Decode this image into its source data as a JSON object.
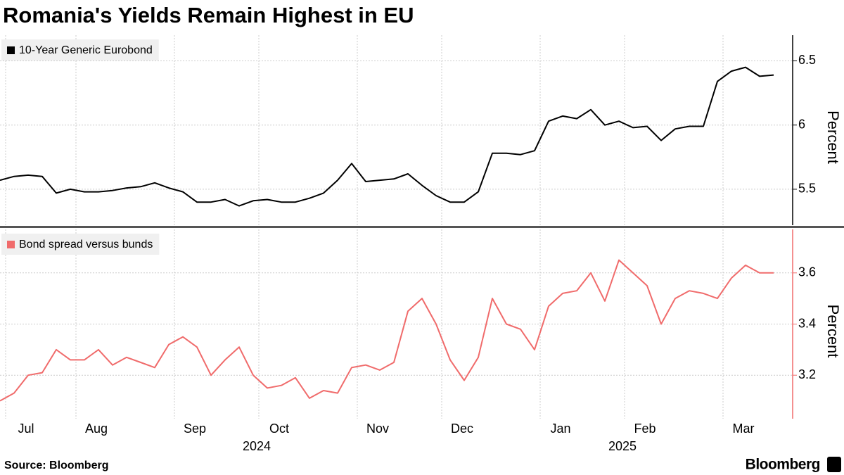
{
  "title": "Romania's Yields Remain Highest in EU",
  "source": "Source: Bloomberg",
  "brand": "Bloomberg",
  "chart_data": [
    {
      "type": "line",
      "y_label": "Percent",
      "series": [
        {
          "name": "10-Year Generic Eurobond",
          "color": "#000000",
          "values": [
            5.57,
            5.6,
            5.61,
            5.6,
            5.47,
            5.5,
            5.48,
            5.48,
            5.49,
            5.51,
            5.52,
            5.55,
            5.51,
            5.48,
            5.4,
            5.4,
            5.42,
            5.37,
            5.41,
            5.42,
            5.4,
            5.4,
            5.43,
            5.47,
            5.57,
            5.7,
            5.56,
            5.57,
            5.58,
            5.62,
            5.53,
            5.45,
            5.4,
            5.4,
            5.48,
            5.78,
            5.78,
            5.77,
            5.8,
            6.03,
            6.07,
            6.05,
            6.12,
            6.0,
            6.03,
            5.98,
            5.99,
            5.88,
            5.97,
            5.99,
            5.99,
            6.34,
            6.42,
            6.45,
            6.38,
            6.39
          ]
        }
      ],
      "ylim": [
        5.22,
        6.7
      ],
      "yticks": [
        5.5,
        6.0,
        6.5
      ],
      "grid": true
    },
    {
      "type": "line",
      "y_label": "Percent",
      "series": [
        {
          "name": "Bond spread versus bunds",
          "color": "#f06b6b",
          "values": [
            3.1,
            3.13,
            3.2,
            3.21,
            3.3,
            3.26,
            3.26,
            3.3,
            3.24,
            3.27,
            3.25,
            3.23,
            3.32,
            3.35,
            3.31,
            3.2,
            3.26,
            3.31,
            3.2,
            3.15,
            3.16,
            3.19,
            3.11,
            3.14,
            3.13,
            3.23,
            3.24,
            3.22,
            3.25,
            3.45,
            3.5,
            3.4,
            3.26,
            3.18,
            3.27,
            3.5,
            3.4,
            3.38,
            3.3,
            3.47,
            3.52,
            3.53,
            3.6,
            3.49,
            3.65,
            3.6,
            3.55,
            3.4,
            3.5,
            3.53,
            3.52,
            3.5,
            3.58,
            3.63,
            3.6,
            3.6
          ]
        }
      ],
      "ylim": [
        3.03,
        3.77
      ],
      "yticks": [
        3.2,
        3.4,
        3.6
      ],
      "grid": true,
      "categories": [
        null,
        null,
        "Jul",
        null,
        null,
        null,
        null,
        "Aug",
        null,
        null,
        null,
        null,
        null,
        null,
        "Sep",
        null,
        null,
        null,
        null,
        null,
        "Oct",
        null,
        null,
        null,
        null,
        null,
        null,
        "Nov",
        null,
        null,
        null,
        null,
        null,
        "Dec",
        null,
        null,
        null,
        null,
        null,
        null,
        "Jan",
        null,
        null,
        null,
        null,
        null,
        "Feb",
        null,
        null,
        null,
        null,
        null,
        null,
        "Mar",
        null,
        null
      ],
      "year_labels": [
        null,
        null,
        null,
        null,
        null,
        null,
        null,
        null,
        null,
        null,
        null,
        null,
        null,
        null,
        null,
        null,
        null,
        null,
        null,
        null,
        "2024",
        null,
        null,
        null,
        null,
        null,
        null,
        null,
        null,
        null,
        null,
        null,
        null,
        null,
        null,
        null,
        null,
        null,
        null,
        null,
        null,
        null,
        null,
        null,
        null,
        null,
        "2025",
        null,
        null,
        null,
        null,
        null,
        null,
        null,
        null,
        null
      ]
    }
  ]
}
